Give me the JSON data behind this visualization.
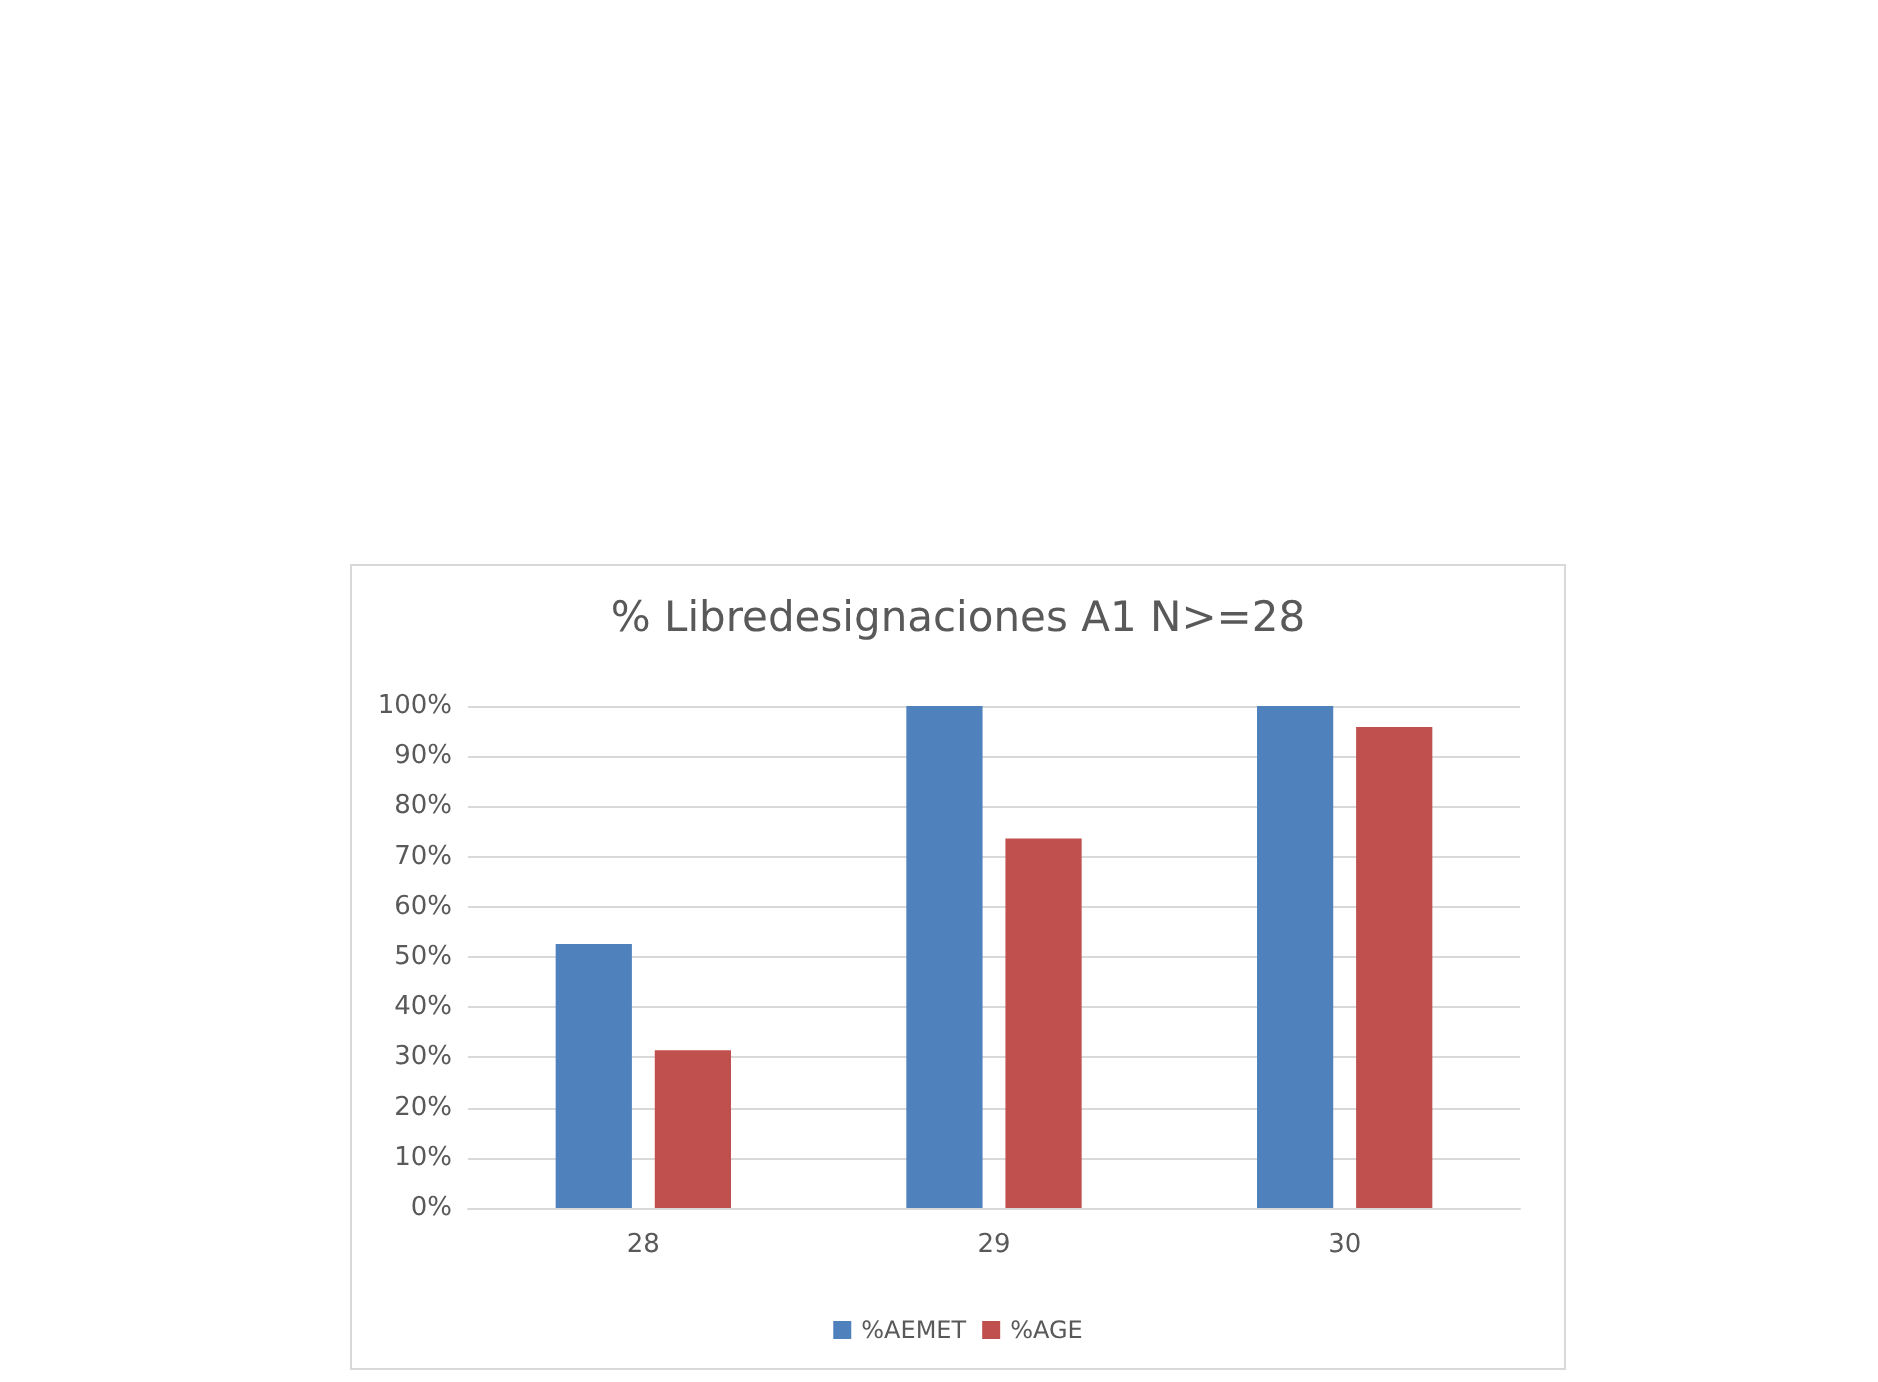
{
  "chart_data": {
    "type": "bar",
    "title": "% Libredesignaciones A1 N>=28",
    "categories": [
      "28",
      "29",
      "30"
    ],
    "series": [
      {
        "name": "%AEMET",
        "color": "#4f81bd",
        "values": [
          52.6,
          100,
          100
        ]
      },
      {
        "name": "%AGE",
        "color": "#c0504d",
        "values": [
          31.4,
          73.6,
          95.8
        ]
      }
    ],
    "ylim": [
      0,
      100
    ],
    "yticks": [
      {
        "value": 0,
        "label": "0%"
      },
      {
        "value": 10,
        "label": "10%"
      },
      {
        "value": 20,
        "label": "20%"
      },
      {
        "value": 30,
        "label": "30%"
      },
      {
        "value": 40,
        "label": "40%"
      },
      {
        "value": 50,
        "label": "50%"
      },
      {
        "value": 60,
        "label": "60%"
      },
      {
        "value": 70,
        "label": "70%"
      },
      {
        "value": 80,
        "label": "80%"
      },
      {
        "value": 90,
        "label": "90%"
      },
      {
        "value": 100,
        "label": "100%"
      }
    ],
    "grid": "y",
    "legend": "bottom"
  }
}
